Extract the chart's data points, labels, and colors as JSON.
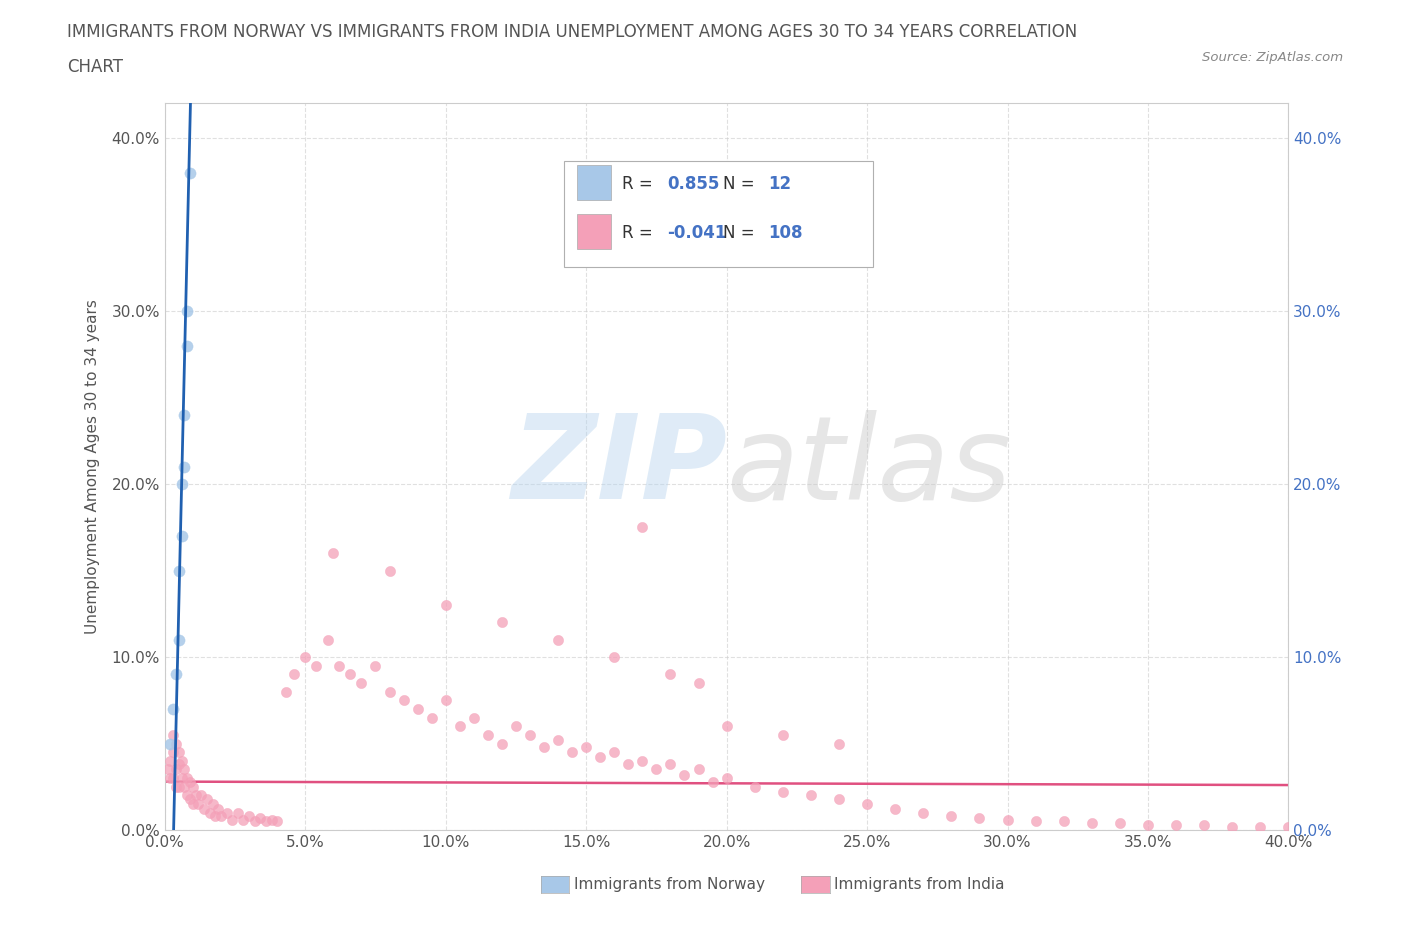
{
  "title_line1": "IMMIGRANTS FROM NORWAY VS IMMIGRANTS FROM INDIA UNEMPLOYMENT AMONG AGES 30 TO 34 YEARS CORRELATION",
  "title_line2": "CHART",
  "source_text": "Source: ZipAtlas.com",
  "ylabel": "Unemployment Among Ages 30 to 34 years",
  "norway_color": "#a8c8e8",
  "india_color": "#f4a0b8",
  "norway_line_color": "#2060b0",
  "india_line_color": "#e05080",
  "background_color": "#ffffff",
  "grid_color": "#cccccc",
  "watermark_zip": "ZIP",
  "watermark_atlas": "atlas",
  "legend_R_norway": "0.855",
  "legend_N_norway": "12",
  "legend_R_india": "-0.041",
  "legend_N_india": "108",
  "norway_label": "Immigrants from Norway",
  "india_label": "Immigrants from India",
  "xlim": [
    0.0,
    0.4
  ],
  "ylim": [
    0.0,
    0.42
  ],
  "xticks": [
    0.0,
    0.05,
    0.1,
    0.15,
    0.2,
    0.25,
    0.3,
    0.35,
    0.4
  ],
  "yticks": [
    0.0,
    0.1,
    0.2,
    0.3,
    0.4
  ],
  "norway_x": [
    0.002,
    0.003,
    0.004,
    0.005,
    0.005,
    0.006,
    0.006,
    0.007,
    0.007,
    0.008,
    0.008,
    0.009
  ],
  "norway_y": [
    0.05,
    0.07,
    0.09,
    0.11,
    0.15,
    0.17,
    0.2,
    0.21,
    0.24,
    0.28,
    0.3,
    0.38
  ],
  "india_x": [
    0.001,
    0.002,
    0.002,
    0.003,
    0.003,
    0.003,
    0.004,
    0.004,
    0.004,
    0.005,
    0.005,
    0.005,
    0.006,
    0.006,
    0.007,
    0.007,
    0.008,
    0.008,
    0.009,
    0.009,
    0.01,
    0.01,
    0.011,
    0.012,
    0.013,
    0.014,
    0.015,
    0.016,
    0.017,
    0.018,
    0.019,
    0.02,
    0.022,
    0.024,
    0.026,
    0.028,
    0.03,
    0.032,
    0.034,
    0.036,
    0.038,
    0.04,
    0.043,
    0.046,
    0.05,
    0.054,
    0.058,
    0.062,
    0.066,
    0.07,
    0.075,
    0.08,
    0.085,
    0.09,
    0.095,
    0.1,
    0.105,
    0.11,
    0.115,
    0.12,
    0.125,
    0.13,
    0.135,
    0.14,
    0.145,
    0.15,
    0.155,
    0.16,
    0.165,
    0.17,
    0.175,
    0.18,
    0.185,
    0.19,
    0.195,
    0.2,
    0.21,
    0.22,
    0.23,
    0.24,
    0.25,
    0.26,
    0.27,
    0.28,
    0.29,
    0.3,
    0.31,
    0.32,
    0.33,
    0.34,
    0.35,
    0.36,
    0.37,
    0.38,
    0.39,
    0.4,
    0.06,
    0.08,
    0.1,
    0.12,
    0.14,
    0.16,
    0.18,
    0.2,
    0.22,
    0.24,
    0.17,
    0.19
  ],
  "india_y": [
    0.035,
    0.04,
    0.03,
    0.055,
    0.045,
    0.03,
    0.05,
    0.035,
    0.025,
    0.045,
    0.038,
    0.025,
    0.04,
    0.03,
    0.035,
    0.025,
    0.03,
    0.02,
    0.028,
    0.018,
    0.025,
    0.015,
    0.02,
    0.015,
    0.02,
    0.012,
    0.018,
    0.01,
    0.015,
    0.008,
    0.012,
    0.008,
    0.01,
    0.006,
    0.01,
    0.006,
    0.008,
    0.005,
    0.007,
    0.005,
    0.006,
    0.005,
    0.08,
    0.09,
    0.1,
    0.095,
    0.11,
    0.095,
    0.09,
    0.085,
    0.095,
    0.08,
    0.075,
    0.07,
    0.065,
    0.075,
    0.06,
    0.065,
    0.055,
    0.05,
    0.06,
    0.055,
    0.048,
    0.052,
    0.045,
    0.048,
    0.042,
    0.045,
    0.038,
    0.04,
    0.035,
    0.038,
    0.032,
    0.035,
    0.028,
    0.03,
    0.025,
    0.022,
    0.02,
    0.018,
    0.015,
    0.012,
    0.01,
    0.008,
    0.007,
    0.006,
    0.005,
    0.005,
    0.004,
    0.004,
    0.003,
    0.003,
    0.003,
    0.002,
    0.002,
    0.002,
    0.16,
    0.15,
    0.13,
    0.12,
    0.11,
    0.1,
    0.09,
    0.06,
    0.055,
    0.05,
    0.175,
    0.085
  ]
}
